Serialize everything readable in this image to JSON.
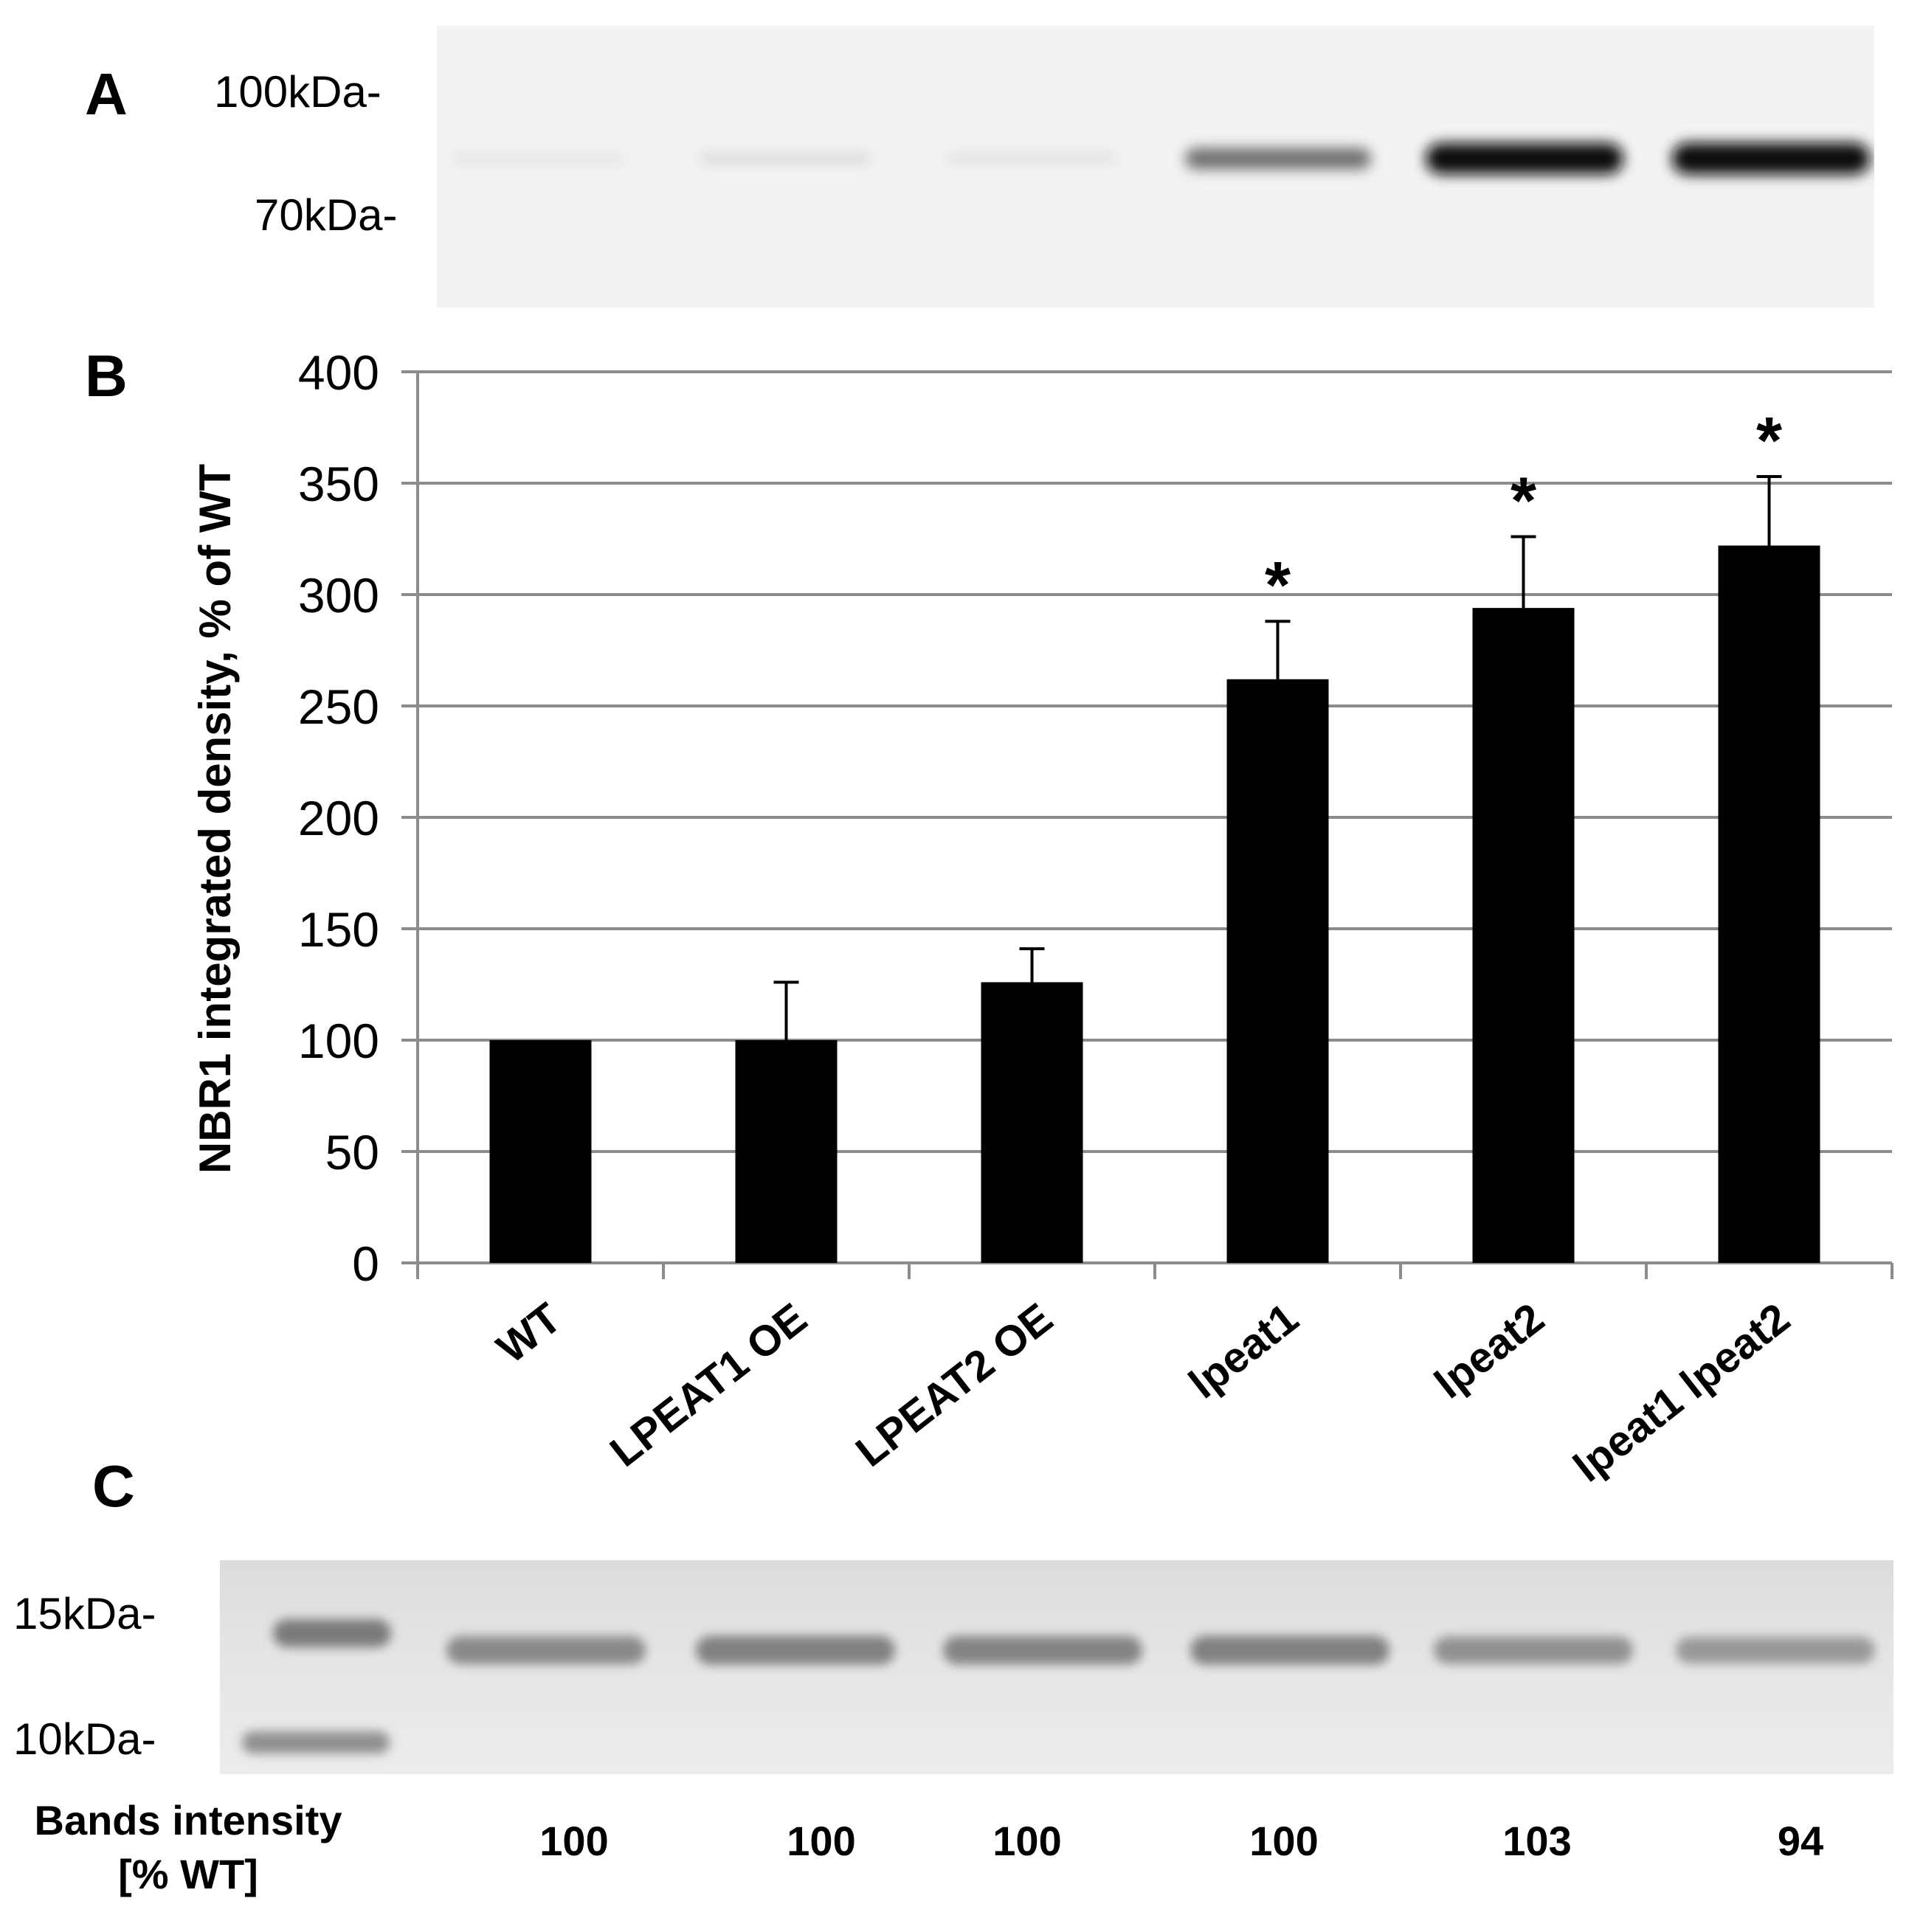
{
  "panels": {
    "a": "A",
    "b": "B",
    "c": "C"
  },
  "blot_a": {
    "markers": [
      "100kDa-",
      "70kDa-"
    ],
    "band_darkness": [
      0.08,
      0.12,
      0.09,
      0.55,
      0.95,
      0.97
    ]
  },
  "blot_c": {
    "markers": [
      "15kDa-",
      "10kDa-"
    ],
    "band_darkness": [
      0.55,
      0.6,
      0.58,
      0.6,
      0.5,
      0.45
    ]
  },
  "intensity": {
    "label_line1": "Bands intensity",
    "label_line2": "[% WT]",
    "values": [
      "100",
      "100",
      "100",
      "100",
      "103",
      "94"
    ]
  },
  "chart_data": {
    "type": "bar",
    "categories": [
      "WT",
      "LPEAT1 OE",
      "LPEAT2 OE",
      "lpeat1",
      "lpeat2",
      "lpeat1 lpeat2"
    ],
    "values": [
      100,
      100,
      126,
      262,
      294,
      322
    ],
    "error_upper": [
      0,
      26,
      15,
      26,
      32,
      31
    ],
    "significance": [
      "",
      "",
      "",
      "*",
      "*",
      "*"
    ],
    "title": "",
    "xlabel": "",
    "ylabel": "NBR1 integrated density, % of WT",
    "ylim": [
      0,
      400
    ],
    "yticks": [
      0,
      50,
      100,
      150,
      200,
      250,
      300,
      350,
      400
    ],
    "grid": true,
    "bar_color": "#000000",
    "grid_color": "#8c8c8c"
  }
}
